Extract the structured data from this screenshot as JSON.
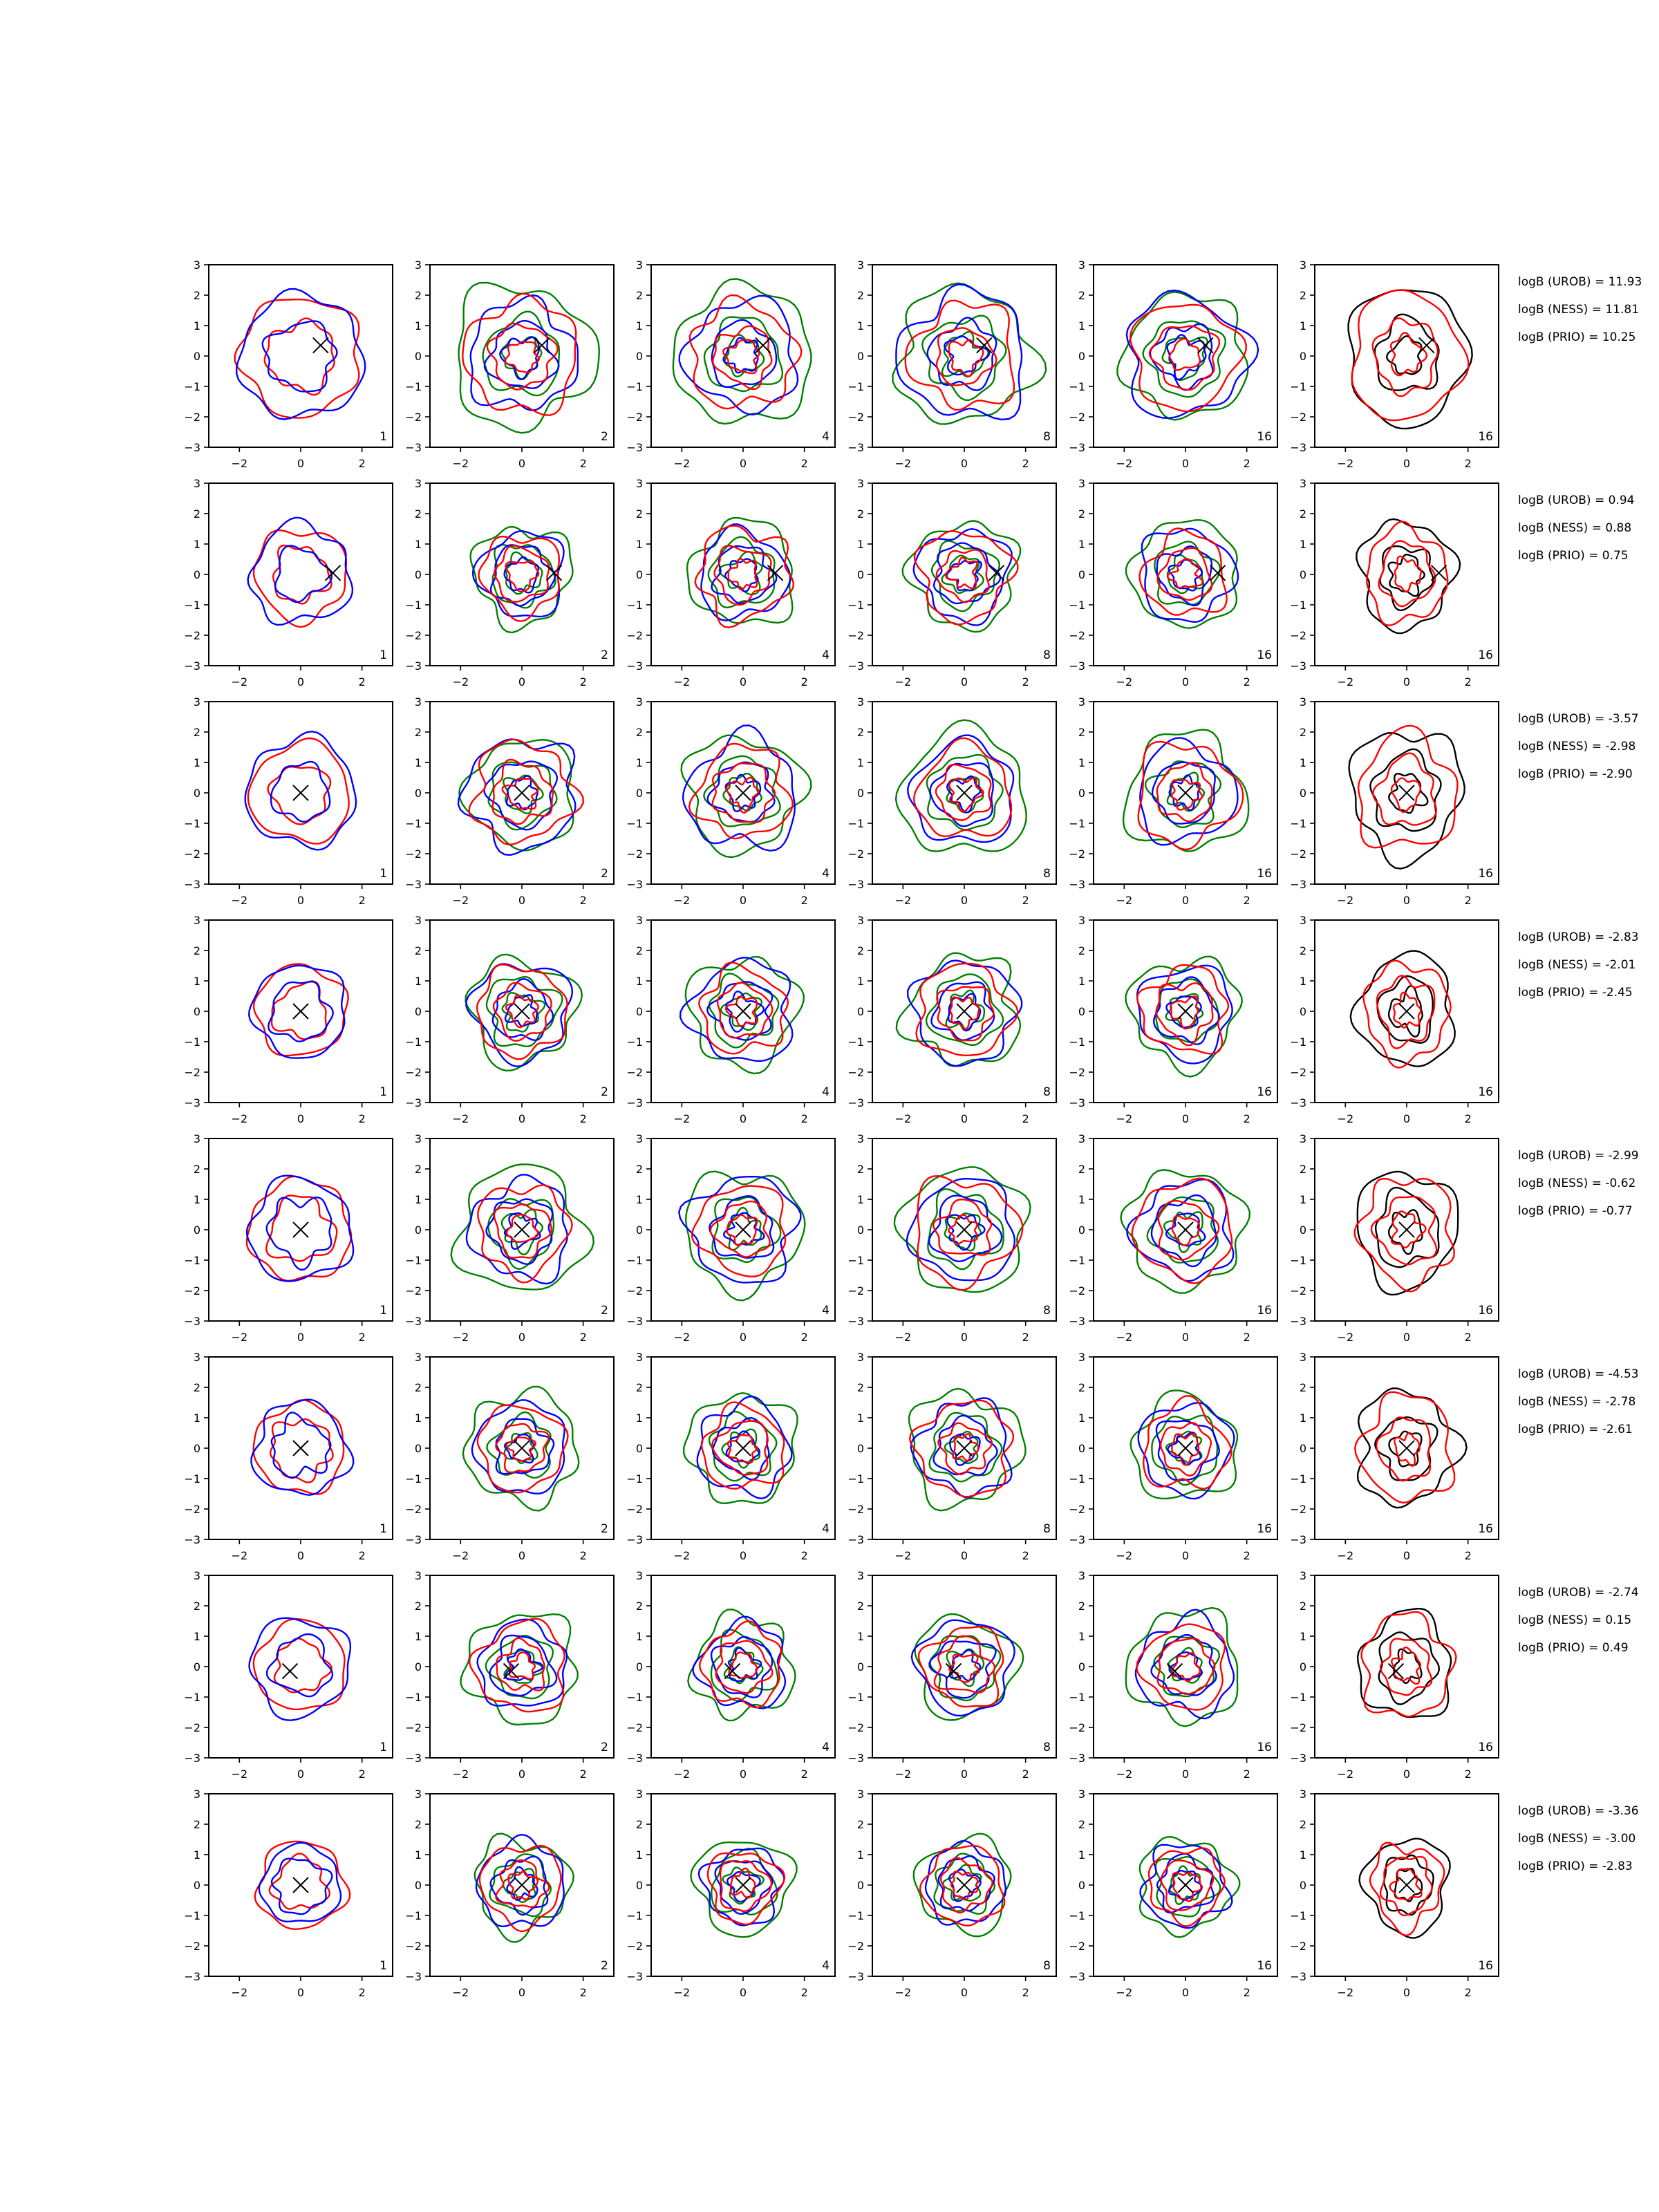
{
  "chart_data": {
    "type": "contour",
    "layout": "grid of 8 rows x 6 columns of 2D contour panels",
    "axes": {
      "xlim": [
        -3,
        3
      ],
      "ylim": [
        -3,
        3
      ],
      "xticks": [
        "−2",
        "0",
        "2"
      ],
      "yticks": [
        "3",
        "2",
        "1",
        "0",
        "−1",
        "−2",
        "−3"
      ]
    },
    "grid": false,
    "column_labels": [
      "1",
      "2",
      "4",
      "8",
      "16",
      "16"
    ],
    "line_colors": {
      "red": "#ff0000",
      "blue": "#0000ff",
      "green": "#008000",
      "black": "#000000"
    },
    "rows": [
      {
        "marker": [
          0.65,
          0.35
        ],
        "radii": [
          1.9,
          1.05,
          0.55
        ],
        "stats": [
          "logB (UROB) = 11.93",
          "logB (NESS) = 11.81",
          "logB (PRIO) = 10.25"
        ]
      },
      {
        "marker": [
          1.05,
          0.05
        ],
        "radii": [
          1.5,
          0.9,
          0.5
        ],
        "stats": [
          "logB (UROB) = 0.94",
          "logB (NESS) = 0.88",
          "logB (PRIO) = 0.75"
        ]
      },
      {
        "marker": [
          0.0,
          0.0
        ],
        "radii": [
          1.7,
          1.0,
          0.5
        ],
        "stats": [
          "logB (UROB) = -3.57",
          "logB (NESS) = -2.98",
          "logB (PRIO) = -2.90"
        ]
      },
      {
        "marker": [
          0.0,
          0.0
        ],
        "radii": [
          1.6,
          0.95,
          0.5
        ],
        "stats": [
          "logB (UROB) = -2.83",
          "logB (NESS) = -2.01",
          "logB (PRIO) = -2.45"
        ]
      },
      {
        "marker": [
          0.0,
          0.0
        ],
        "radii": [
          1.7,
          1.0,
          0.5
        ],
        "stats": [
          "logB (UROB) = -2.99",
          "logB (NESS) = -0.62",
          "logB (PRIO) = -0.77"
        ]
      },
      {
        "marker": [
          0.0,
          0.0
        ],
        "radii": [
          1.55,
          0.9,
          0.45
        ],
        "stats": [
          "logB (UROB) = -4.53",
          "logB (NESS) = -2.78",
          "logB (PRIO) = -2.61"
        ]
      },
      {
        "marker": [
          -0.35,
          -0.15
        ],
        "radii": [
          1.5,
          0.9,
          0.45
        ],
        "stats": [
          "logB (UROB) = -2.74",
          "logB (NESS) = 0.15",
          "logB (PRIO) = 0.49"
        ]
      },
      {
        "marker": [
          0.0,
          0.0
        ],
        "radii": [
          1.35,
          0.85,
          0.45
        ],
        "stats": [
          "logB (UROB) = -3.36",
          "logB (NESS) = -3.00",
          "logB (PRIO) = -2.83"
        ]
      }
    ]
  }
}
